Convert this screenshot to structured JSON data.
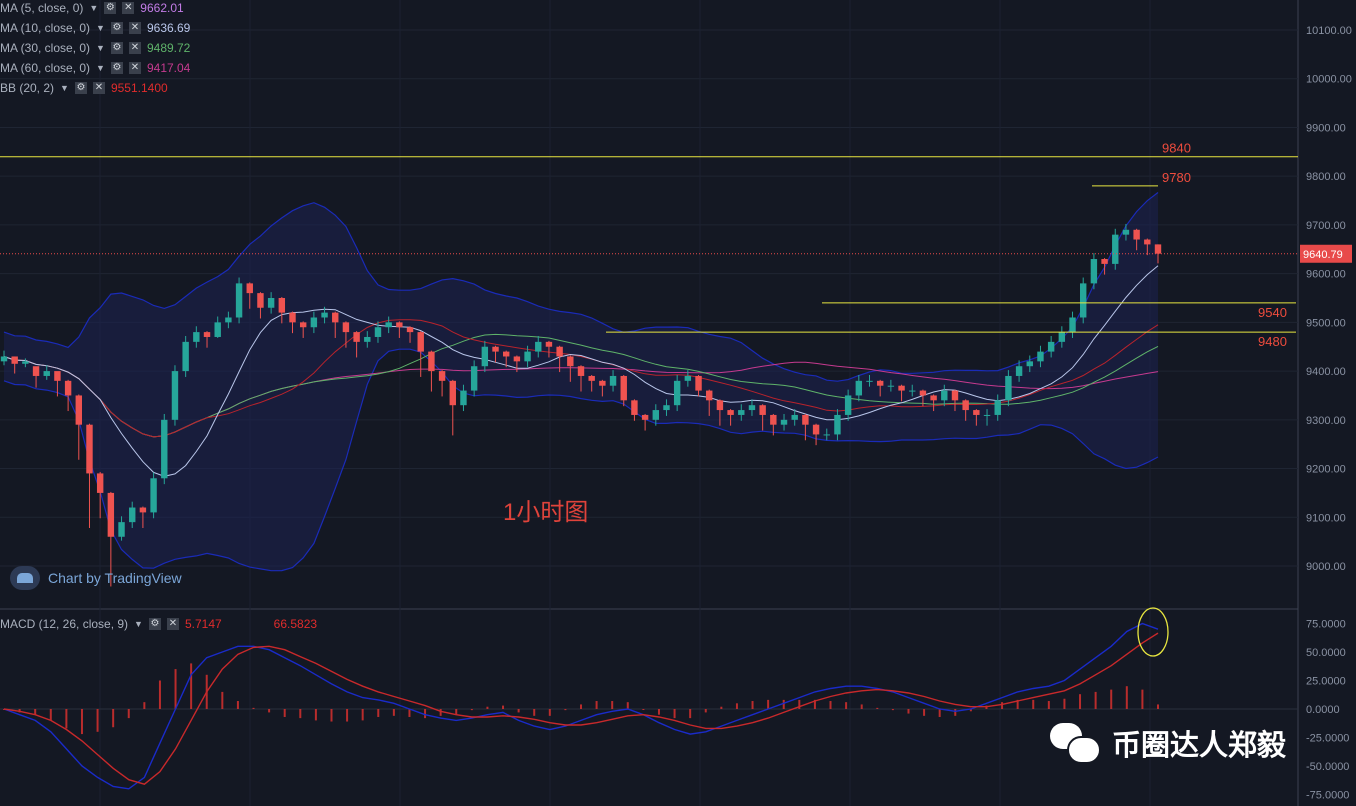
{
  "indicators": {
    "ma5": {
      "label": "MA (5, close, 0)",
      "value": "9662.01",
      "color": "#c27ce6"
    },
    "ma10": {
      "label": "MA (10, close, 0)",
      "value": "9636.69",
      "color": "#b9c6ea"
    },
    "ma30": {
      "label": "MA (30, close, 0)",
      "value": "9489.72",
      "color": "#5fb36a"
    },
    "ma60": {
      "label": "MA (60, close, 0)",
      "value": "9417.04",
      "color": "#c63a8f"
    },
    "bb": {
      "label": "BB (20, 2)",
      "value": "9551.1400",
      "color": "#e02c2c"
    },
    "macd": {
      "label": "MACD (12, 26, close, 9)",
      "value1": "5.7147",
      "value2": "66.5823",
      "color1": "#e02c2c",
      "color2": "#e02c2c"
    }
  },
  "watermark": "Chart by TradingView",
  "center_label": "1小时图",
  "wechat_label": "币圈达人郑毅",
  "price_badge": "9640.79",
  "chart_data": [
    {
      "type": "candlestick",
      "ylim": [
        8900,
        10160
      ],
      "ytick_values": [
        9000,
        9100,
        9200,
        9300,
        9400,
        9500,
        9600,
        9700,
        9800,
        9900,
        10000,
        10100
      ],
      "ytick_labels": [
        "9000.00",
        "9100.00",
        "9200.00",
        "9300.00",
        "9400.00",
        "9500.00",
        "9600.00",
        "9700.00",
        "9800.00",
        "9900.00",
        "10000.00",
        "10100.00"
      ],
      "close": [
        9430,
        9415,
        9420,
        9390,
        9400,
        9380,
        9350,
        9290,
        9190,
        9150,
        9060,
        9090,
        9120,
        9110,
        9180,
        9300,
        9400,
        9460,
        9480,
        9470,
        9500,
        9510,
        9580,
        9560,
        9530,
        9550,
        9520,
        9500,
        9490,
        9510,
        9520,
        9500,
        9480,
        9460,
        9470,
        9490,
        9500,
        9490,
        9480,
        9440,
        9400,
        9380,
        9330,
        9360,
        9410,
        9450,
        9440,
        9430,
        9420,
        9440,
        9460,
        9450,
        9430,
        9410,
        9390,
        9380,
        9370,
        9390,
        9340,
        9310,
        9300,
        9320,
        9330,
        9380,
        9390,
        9360,
        9340,
        9320,
        9310,
        9320,
        9330,
        9310,
        9290,
        9300,
        9310,
        9290,
        9270,
        9270,
        9310,
        9350,
        9380,
        9380,
        9370,
        9370,
        9360,
        9360,
        9350,
        9340,
        9360,
        9340,
        9320,
        9310,
        9310,
        9340,
        9390,
        9410,
        9420,
        9440,
        9460,
        9480,
        9510,
        9580,
        9630,
        9620,
        9680,
        9690,
        9670,
        9660,
        9641
      ],
      "open_offset": [
        10,
        -15,
        5,
        -20,
        10,
        -20,
        -30,
        -60,
        -100,
        -40,
        -90,
        30,
        30,
        -10,
        70,
        120,
        100,
        60,
        20,
        -10,
        30,
        10,
        70,
        -20,
        -30,
        20,
        -30,
        -20,
        -10,
        20,
        10,
        -20,
        -20,
        -20,
        10,
        20,
        10,
        -10,
        -10,
        -40,
        -40,
        -20,
        -50,
        30,
        50,
        40,
        -10,
        -10,
        -10,
        20,
        20,
        -10,
        -20,
        -20,
        -20,
        -10,
        -10,
        20,
        -50,
        -30,
        -10,
        20,
        10,
        50,
        10,
        -30,
        -20,
        -20,
        -10,
        10,
        10,
        -20,
        -20,
        10,
        10,
        -20,
        -20,
        0,
        40,
        40,
        30,
        0,
        -10,
        0,
        -10,
        0,
        -10,
        -10,
        20,
        -20,
        -20,
        -10,
        0,
        30,
        50,
        20,
        10,
        20,
        20,
        20,
        30,
        70,
        50,
        -10,
        60,
        10,
        -20,
        -10,
        -19
      ],
      "high": [
        9442,
        9430,
        9426,
        9402,
        9412,
        9392,
        9382,
        9352,
        9292,
        9193,
        9152,
        9102,
        9132,
        9122,
        9192,
        9312,
        9412,
        9472,
        9492,
        9482,
        9512,
        9522,
        9592,
        9582,
        9562,
        9562,
        9552,
        9522,
        9502,
        9522,
        9532,
        9522,
        9502,
        9482,
        9482,
        9502,
        9512,
        9502,
        9492,
        9482,
        9442,
        9402,
        9382,
        9372,
        9422,
        9462,
        9452,
        9442,
        9432,
        9452,
        9472,
        9462,
        9452,
        9432,
        9412,
        9392,
        9382,
        9402,
        9392,
        9342,
        9312,
        9332,
        9342,
        9392,
        9402,
        9392,
        9362,
        9342,
        9322,
        9332,
        9342,
        9332,
        9312,
        9312,
        9322,
        9312,
        9292,
        9282,
        9322,
        9362,
        9392,
        9392,
        9382,
        9382,
        9372,
        9372,
        9362,
        9352,
        9372,
        9362,
        9342,
        9322,
        9322,
        9352,
        9402,
        9422,
        9432,
        9452,
        9472,
        9492,
        9522,
        9592,
        9642,
        9632,
        9692,
        9702,
        9692,
        9672,
        9660
      ],
      "low": [
        9412,
        9395,
        9408,
        9366,
        9382,
        9348,
        9318,
        9218,
        9078,
        9098,
        8958,
        9052,
        9078,
        9078,
        9098,
        9168,
        9288,
        9388,
        9448,
        9448,
        9468,
        9488,
        9498,
        9528,
        9508,
        9518,
        9498,
        9478,
        9468,
        9478,
        9498,
        9468,
        9448,
        9428,
        9448,
        9458,
        9478,
        9468,
        9458,
        9388,
        9358,
        9348,
        9268,
        9318,
        9348,
        9398,
        9418,
        9408,
        9398,
        9408,
        9428,
        9428,
        9398,
        9378,
        9358,
        9358,
        9348,
        9358,
        9328,
        9298,
        9278,
        9288,
        9308,
        9318,
        9368,
        9348,
        9308,
        9288,
        9288,
        9298,
        9308,
        9278,
        9268,
        9278,
        9288,
        9258,
        9248,
        9258,
        9258,
        9298,
        9338,
        9368,
        9348,
        9358,
        9338,
        9348,
        9328,
        9318,
        9328,
        9318,
        9298,
        9288,
        9288,
        9298,
        9328,
        9378,
        9398,
        9408,
        9428,
        9448,
        9468,
        9498,
        9568,
        9598,
        9608,
        9668,
        9648,
        9638,
        9621
      ]
    },
    {
      "type": "horizontal_levels",
      "levels": [
        9840,
        9780,
        9540,
        9480
      ],
      "labels": [
        "9840",
        "9780",
        "9540",
        "9480"
      ]
    },
    {
      "type": "line",
      "series": [
        {
          "name": "MACD",
          "values": [
            0,
            -5,
            -10,
            -20,
            -35,
            -50,
            -60,
            -68,
            -70,
            -60,
            -30,
            0,
            30,
            45,
            50,
            55,
            55,
            52,
            45,
            38,
            30,
            22,
            15,
            10,
            8,
            5,
            0,
            -5,
            -8,
            -10,
            -8,
            -5,
            -3,
            -10,
            -15,
            -18,
            -15,
            -10,
            -5,
            -2,
            0,
            -5,
            -12,
            -18,
            -22,
            -20,
            -15,
            -10,
            -5,
            0,
            5,
            10,
            15,
            18,
            20,
            20,
            18,
            15,
            10,
            5,
            0,
            -2,
            0,
            5,
            10,
            15,
            18,
            20,
            25,
            35,
            45,
            55,
            68,
            75,
            70
          ]
        },
        {
          "name": "Signal",
          "values": [
            0,
            -2,
            -5,
            -10,
            -18,
            -28,
            -40,
            -52,
            -62,
            -66,
            -55,
            -35,
            -10,
            15,
            35,
            48,
            54,
            55,
            52,
            46,
            40,
            33,
            26,
            20,
            15,
            11,
            7,
            3,
            -2,
            -5,
            -7,
            -7,
            -6,
            -7,
            -9,
            -12,
            -14,
            -14,
            -12,
            -9,
            -6,
            -5,
            -7,
            -10,
            -14,
            -17,
            -17,
            -15,
            -12,
            -8,
            -3,
            2,
            7,
            11,
            14,
            16,
            17,
            16,
            14,
            11,
            7,
            4,
            2,
            2,
            4,
            7,
            10,
            13,
            16,
            22,
            30,
            38,
            48,
            58,
            66.58
          ]
        }
      ],
      "histogram": [
        0,
        -3,
        -5,
        -10,
        -17,
        -22,
        -20,
        -16,
        -8,
        6,
        25,
        35,
        40,
        30,
        15,
        7,
        1,
        -3,
        -7,
        -8,
        -10,
        -11,
        -11,
        -10,
        -7,
        -6,
        -7,
        -8,
        -6,
        -5,
        -1,
        2,
        3,
        -3,
        -6,
        -6,
        -1,
        4,
        7,
        7,
        6,
        0,
        -5,
        -8,
        -8,
        -3,
        2,
        5,
        7,
        8,
        8,
        8,
        8,
        7,
        6,
        4,
        1,
        -1,
        -4,
        -6,
        -7,
        -6,
        -2,
        3,
        6,
        8,
        8,
        7,
        9,
        13,
        15,
        17,
        20,
        17,
        4
      ],
      "ylim": [
        -80,
        85
      ],
      "ytick_values": [
        75,
        50,
        25,
        0,
        -25,
        -50,
        -75
      ],
      "ytick_labels": [
        "75.0000",
        "50.0000",
        "25.0000",
        "0.0000",
        "-25.0000",
        "-50.0000",
        "-75.0000"
      ]
    }
  ]
}
